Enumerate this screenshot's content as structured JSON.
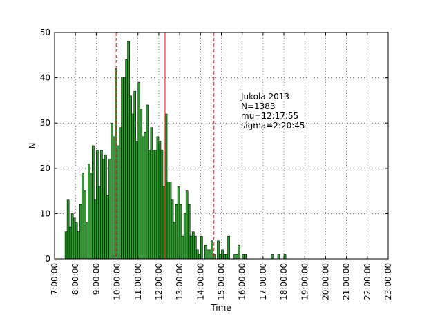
{
  "chart_data": {
    "type": "bar",
    "xlabel": "Time",
    "ylabel": "N",
    "xlim_hours": [
      7,
      23
    ],
    "ylim": [
      0,
      50
    ],
    "x_ticks": [
      "7:00:00",
      "8:00:00",
      "9:00:00",
      "10:00:00",
      "11:00:00",
      "12:00:00",
      "13:00:00",
      "14:00:00",
      "15:00:00",
      "16:00:00",
      "17:00:00",
      "18:00:00",
      "19:00:00",
      "20:00:00",
      "21:00:00",
      "22:00:00",
      "23:00:00"
    ],
    "y_ticks": [
      "0",
      "10",
      "20",
      "30",
      "40",
      "50"
    ],
    "grid": true,
    "bar_color": "#2ca02c",
    "bins_start_hour": 7.5,
    "bin_width_hours": 0.1,
    "counts": [
      6,
      13,
      7,
      10,
      9,
      8,
      6,
      12,
      19,
      15,
      8,
      21,
      19,
      25,
      13,
      24,
      16,
      24,
      22,
      23,
      14,
      22,
      30,
      27,
      42,
      25,
      29,
      40,
      40,
      44,
      48,
      36,
      32,
      37,
      26,
      39,
      33,
      27,
      28,
      34,
      24,
      29,
      24,
      24,
      27,
      26,
      24,
      16,
      32,
      17,
      17,
      13,
      8,
      12,
      16,
      12,
      5,
      10,
      15,
      12,
      5,
      6,
      5,
      2,
      1,
      5,
      0,
      3,
      2,
      2,
      4,
      1,
      0,
      4,
      1,
      2,
      1,
      1,
      5,
      0,
      0,
      1,
      1,
      3,
      0,
      1,
      1,
      0,
      0,
      0,
      0,
      0,
      0,
      0,
      0,
      0,
      0,
      0,
      0,
      1,
      0,
      0,
      1,
      0,
      0,
      1
    ],
    "vlines": [
      {
        "hour": 12.298611,
        "style": "solid",
        "color": "#ff0000"
      },
      {
        "hour": 9.952778,
        "style": "dashed",
        "color": "#ff0000"
      },
      {
        "hour": 14.644444,
        "style": "dashed",
        "color": "#ff0000"
      }
    ],
    "annotation": [
      "Jukola 2013",
      "N=1383",
      "mu=12:17:55",
      "sigma=2:20:45"
    ]
  }
}
